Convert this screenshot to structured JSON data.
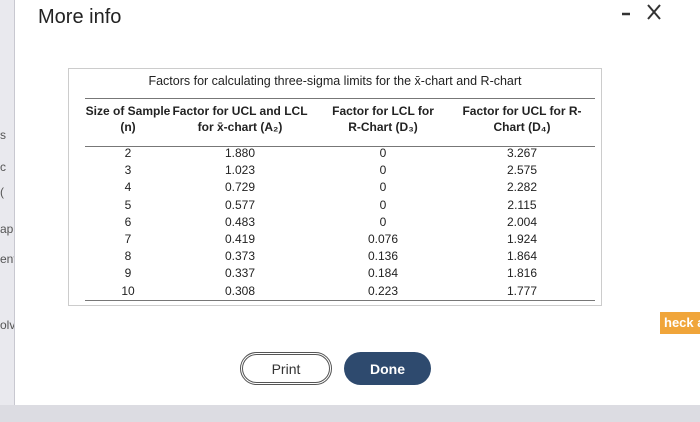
{
  "header": {
    "title": "More info"
  },
  "background_fragments": [
    "s",
    "c",
    "(",
    "ap",
    "ent",
    "olv",
    "heck a"
  ],
  "table": {
    "caption": "Factors for calculating three-sigma limits for the x̄-chart and R-chart",
    "columns": [
      "Size of Sample (n)",
      "Factor for UCL and LCL for x̄-chart (A₂)",
      "Factor for LCL for R-Chart (D₃)",
      "Factor for UCL for R-Chart (D₄)"
    ],
    "rows": [
      [
        "2",
        "1.880",
        "0",
        "3.267"
      ],
      [
        "3",
        "1.023",
        "0",
        "2.575"
      ],
      [
        "4",
        "0.729",
        "0",
        "2.282"
      ],
      [
        "5",
        "0.577",
        "0",
        "2.115"
      ],
      [
        "6",
        "0.483",
        "0",
        "2.004"
      ],
      [
        "7",
        "0.419",
        "0.076",
        "1.924"
      ],
      [
        "8",
        "0.373",
        "0.136",
        "1.864"
      ],
      [
        "9",
        "0.337",
        "0.184",
        "1.816"
      ],
      [
        "10",
        "0.308",
        "0.223",
        "1.777"
      ]
    ]
  },
  "buttons": [
    "Print",
    "Done"
  ]
}
